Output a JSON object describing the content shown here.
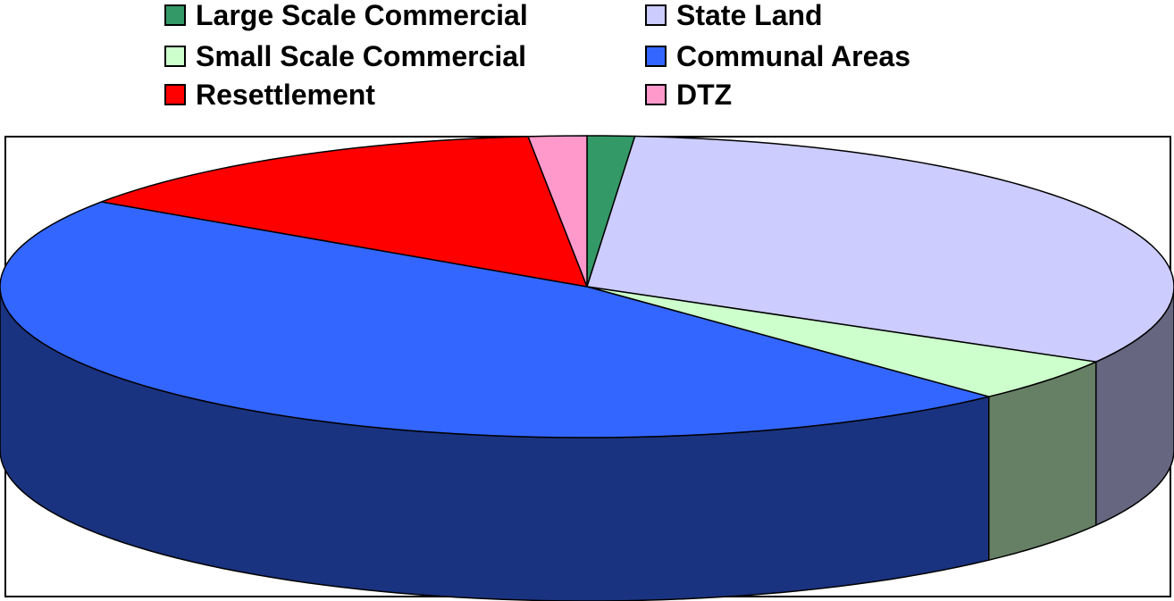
{
  "chart_data": {
    "type": "pie",
    "style": "3d",
    "title": "",
    "legend_position": "top",
    "categories": [
      "Large Scale Commercial",
      "State Land",
      "Small Scale Commercial",
      "Communal Areas",
      "Resettlement",
      "DTZ"
    ],
    "values": [
      1.3,
      32.0,
      4.7,
      46.5,
      13.9,
      1.6
    ],
    "unit": "%",
    "colors": {
      "Large Scale Commercial": "#339966",
      "State Land": "#ccccff",
      "Small Scale Commercial": "#ccffcc",
      "Communal Areas": "#3366ff",
      "Resettlement": "#ff0000",
      "DTZ": "#ff99cc"
    },
    "side_colors": {
      "Large Scale Commercial": "#1a4d33",
      "State Land": "#666680",
      "Small Scale Commercial": "#668066",
      "Communal Areas": "#1a3380",
      "Resettlement": "#800000",
      "DTZ": "#804d66"
    },
    "legend": [
      {
        "label": "Large Scale Commercial",
        "color": "#339966"
      },
      {
        "label": "State Land",
        "color": "#ccccff"
      },
      {
        "label": "Small Scale Commercial",
        "color": "#ccffcc"
      },
      {
        "label": "Communal Areas",
        "color": "#3366ff"
      },
      {
        "label": "Resettlement",
        "color": "#ff0000"
      },
      {
        "label": "DTZ",
        "color": "#ff99cc"
      }
    ]
  }
}
